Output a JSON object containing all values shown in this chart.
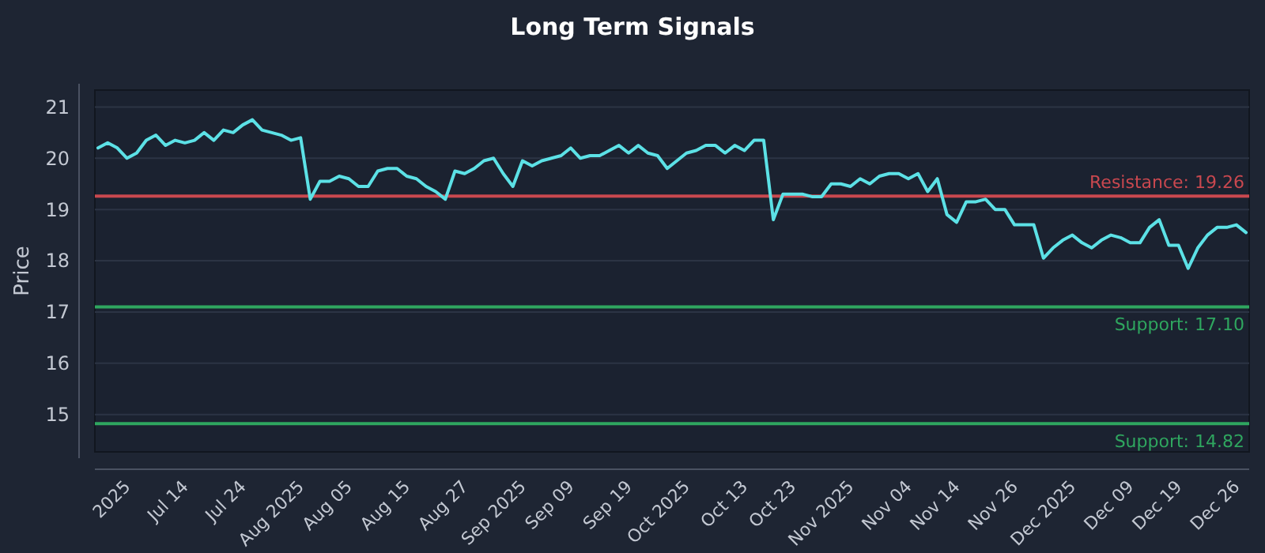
{
  "chart_data": {
    "type": "line",
    "title": "Long Term Signals",
    "ylabel": "Price",
    "categories": [
      null,
      null,
      null,
      "2025",
      null,
      null,
      null,
      null,
      null,
      "Jul 14",
      null,
      null,
      null,
      null,
      null,
      "Jul 24",
      null,
      null,
      null,
      null,
      null,
      "Aug 2025",
      null,
      null,
      null,
      null,
      "Aug 05",
      null,
      null,
      null,
      null,
      null,
      "Aug 15",
      null,
      null,
      null,
      null,
      null,
      "Aug 27",
      null,
      null,
      null,
      null,
      null,
      "Sep 2025",
      null,
      null,
      null,
      null,
      "Sep 09",
      null,
      null,
      null,
      null,
      null,
      "Sep 19",
      null,
      null,
      null,
      null,
      null,
      "Oct 2025",
      null,
      null,
      null,
      null,
      null,
      "Oct 13",
      null,
      null,
      null,
      null,
      "Oct 23",
      null,
      null,
      null,
      null,
      null,
      "Nov 2025",
      null,
      null,
      null,
      null,
      null,
      "Nov 04",
      null,
      null,
      null,
      null,
      "Nov 14",
      null,
      null,
      null,
      null,
      null,
      "Nov 26",
      null,
      null,
      null,
      null,
      null,
      "Dec 2025",
      null,
      null,
      null,
      null,
      null,
      "Dec 09",
      null,
      null,
      null,
      null,
      "Dec 19",
      null,
      null,
      null,
      null,
      null,
      "Dec 26",
      null
    ],
    "series": [
      {
        "color": "#5ce1e6",
        "values": [
          20.2,
          20.3,
          20.2,
          20.0,
          20.1,
          20.35,
          20.45,
          20.25,
          20.35,
          20.3,
          20.35,
          20.5,
          20.35,
          20.55,
          20.5,
          20.65,
          20.75,
          20.55,
          20.5,
          20.45,
          20.35,
          20.4,
          19.2,
          19.55,
          19.55,
          19.65,
          19.6,
          19.45,
          19.45,
          19.75,
          19.8,
          19.8,
          19.65,
          19.6,
          19.45,
          19.35,
          19.2,
          19.75,
          19.7,
          19.8,
          19.95,
          20.0,
          19.7,
          19.45,
          19.95,
          19.85,
          19.95,
          20.0,
          20.05,
          20.2,
          20.0,
          20.05,
          20.05,
          20.15,
          20.25,
          20.1,
          20.25,
          20.1,
          20.05,
          19.8,
          19.95,
          20.1,
          20.15,
          20.25,
          20.25,
          20.1,
          20.25,
          20.15,
          20.35,
          20.35,
          18.8,
          19.3,
          19.3,
          19.3,
          19.25,
          19.25,
          19.5,
          19.5,
          19.45,
          19.6,
          19.5,
          19.65,
          19.7,
          19.7,
          19.6,
          19.7,
          19.35,
          19.6,
          18.9,
          18.75,
          19.15,
          19.15,
          19.2,
          19.0,
          19.0,
          18.7,
          18.7,
          18.7,
          18.05,
          18.25,
          18.4,
          18.5,
          18.35,
          18.25,
          18.4,
          18.5,
          18.45,
          18.35,
          18.35,
          18.65,
          18.8,
          18.3,
          18.3,
          17.85,
          18.25,
          18.5,
          18.65,
          18.65,
          18.7,
          18.55
        ]
      }
    ],
    "ylim": [
      14.27,
      21.33
    ],
    "yticks": [
      15,
      16,
      17,
      18,
      19,
      20,
      21
    ],
    "grid": "y",
    "line_style": "solid",
    "marker": "none",
    "ref_lines": [
      {
        "axis": "y",
        "value": 19.26,
        "label": "Resistance: 19.26",
        "color": "#c9484f"
      },
      {
        "axis": "y",
        "value": 17.1,
        "label": "Support: 17.10",
        "color": "#2fa65f"
      },
      {
        "axis": "y",
        "value": 14.82,
        "label": "Support: 14.82",
        "color": "#2fa65f"
      }
    ]
  }
}
